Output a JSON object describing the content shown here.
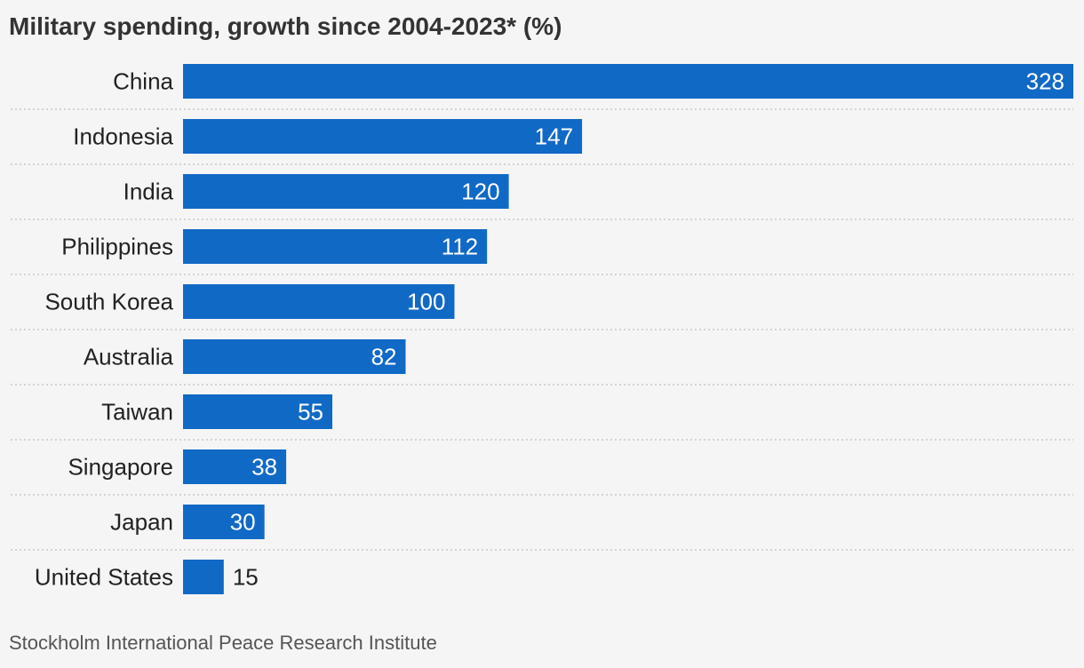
{
  "title": "Military spending, growth since 2004-2023* (%)",
  "source": "Stockholm International Peace Research Institute",
  "colors": {
    "bar": "#1169c6",
    "label_inside": "#ffffff",
    "label_outside": "#222222",
    "grid": "#c8c8c8",
    "background": "#f5f5f5"
  },
  "chart_data": {
    "type": "bar",
    "orientation": "horizontal",
    "categories": [
      "China",
      "Indonesia",
      "India",
      "Philippines",
      "South Korea",
      "Australia",
      "Taiwan",
      "Singapore",
      "Japan",
      "United States"
    ],
    "values": [
      328,
      147,
      120,
      112,
      100,
      82,
      55,
      38,
      30,
      15
    ],
    "title": "Military spending, growth since 2004-2023* (%)",
    "xlabel": "",
    "ylabel": "",
    "xlim": [
      0,
      328
    ],
    "data_labels": true,
    "grid": "dotted row separators",
    "legend": "none"
  }
}
